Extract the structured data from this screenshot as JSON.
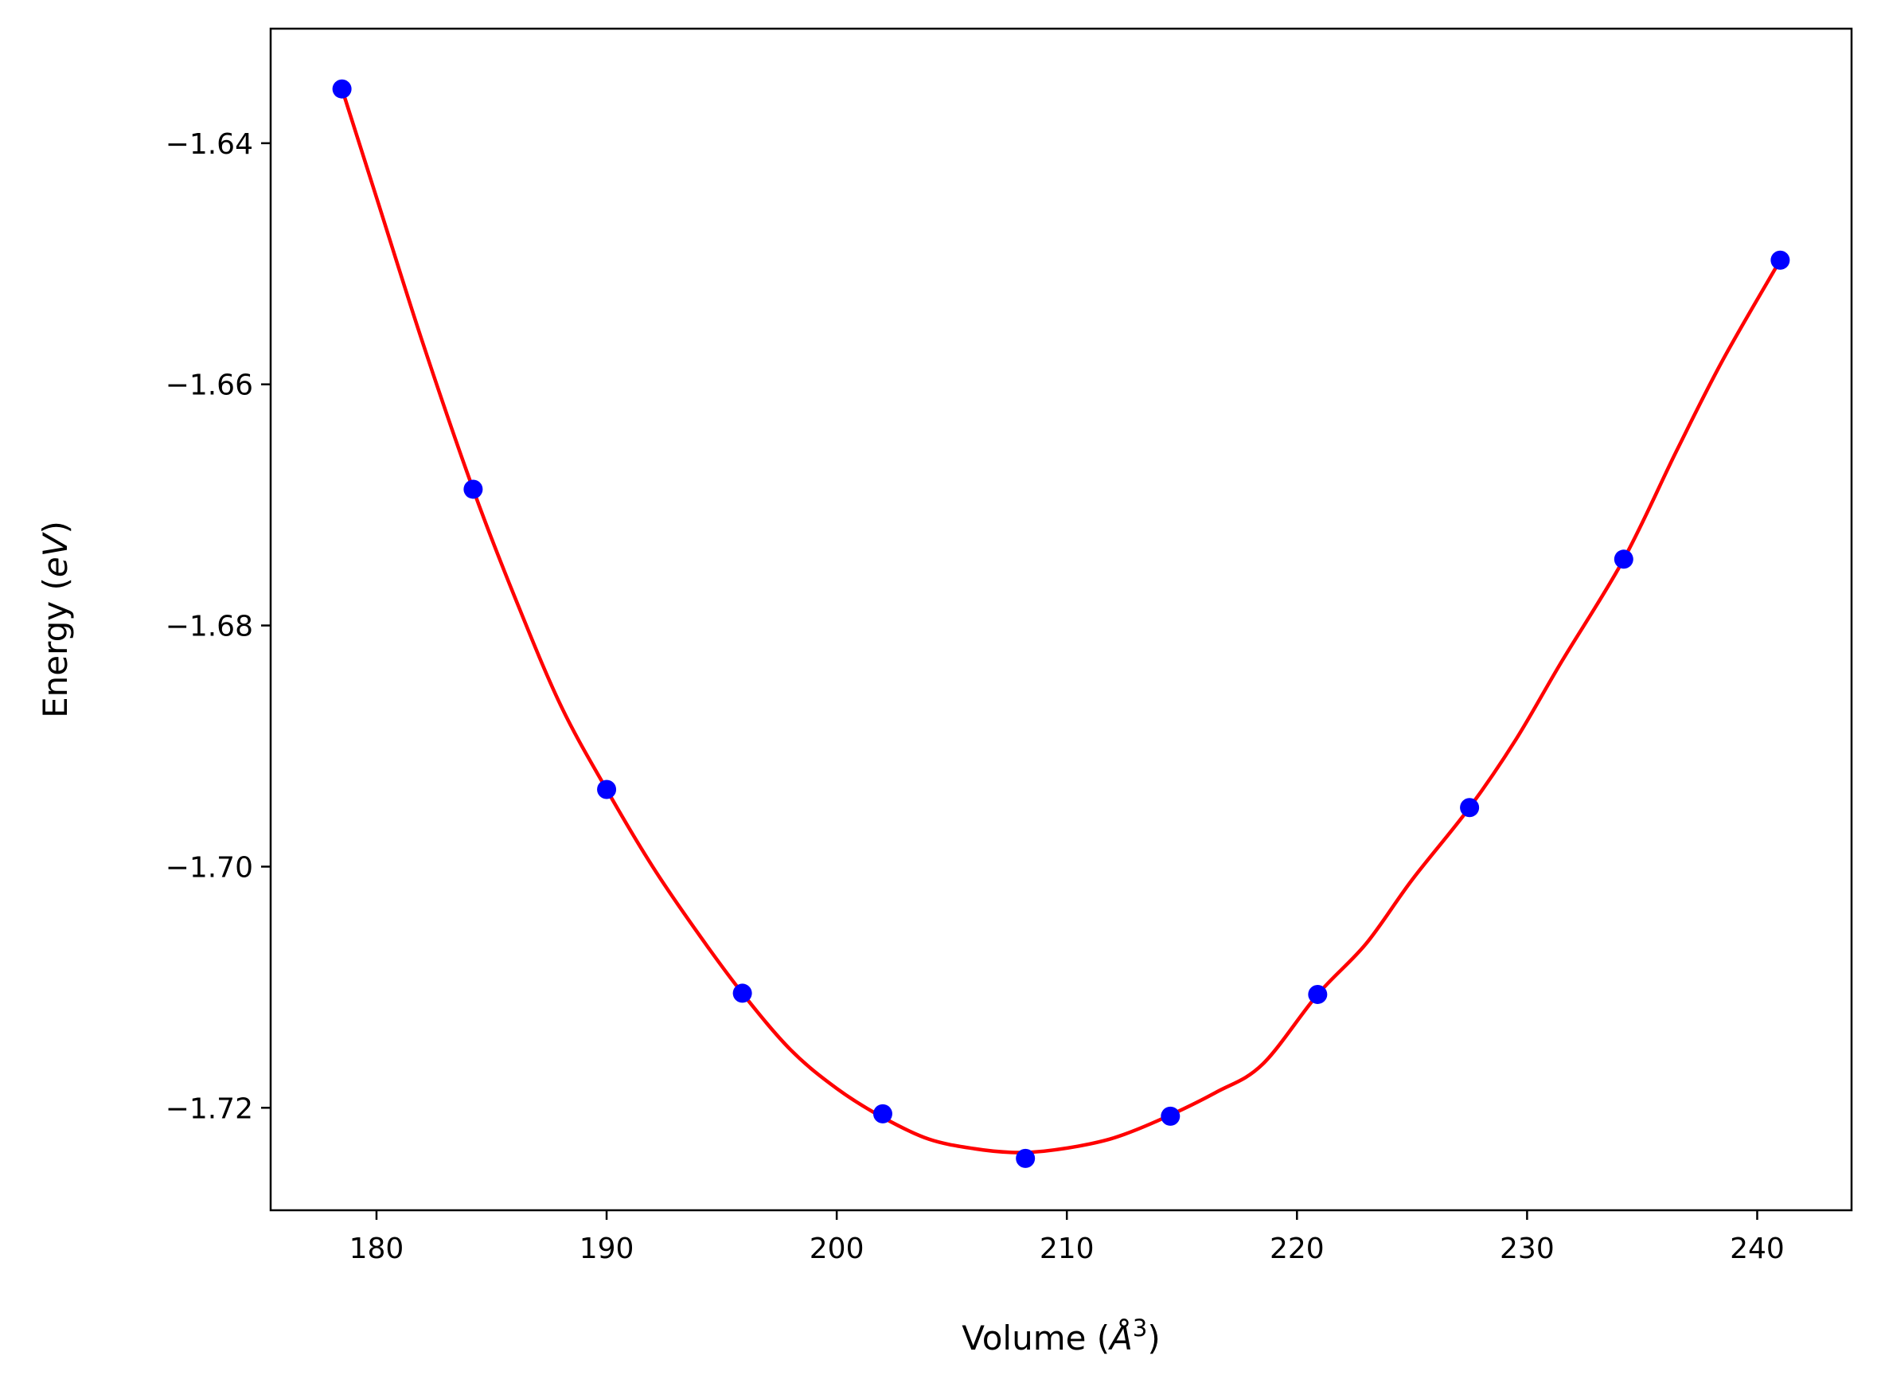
{
  "chart_data": {
    "type": "scatter",
    "title": "",
    "xlabel": {
      "prefix": "Volume (",
      "italic": "Å",
      "superscript": "3",
      "suffix": ")"
    },
    "ylabel": {
      "prefix": "Energy (",
      "italic": "eV",
      "suffix": ")"
    },
    "xlim": [
      175.4,
      244.1
    ],
    "ylim": [
      -1.7285,
      -1.6305
    ],
    "xticks": [
      180,
      190,
      200,
      210,
      220,
      230,
      240
    ],
    "xtick_labels": [
      "180",
      "190",
      "200",
      "210",
      "220",
      "230",
      "240"
    ],
    "yticks": [
      -1.64,
      -1.66,
      -1.68,
      -1.7,
      -1.72
    ],
    "ytick_labels": [
      "−1.64",
      "−1.66",
      "−1.68",
      "−1.70",
      "−1.72"
    ],
    "grid": false,
    "series": [
      {
        "kind": "points",
        "color": "#0000ff",
        "x": [
          178.5,
          184.2,
          190.0,
          195.9,
          202.0,
          208.2,
          214.5,
          220.9,
          227.5,
          234.2,
          241.0
        ],
        "y": [
          -1.6355,
          -1.6687,
          -1.6936,
          -1.7105,
          -1.7205,
          -1.7242,
          -1.7207,
          -1.7106,
          -1.6951,
          -1.6745,
          -1.6497
        ]
      },
      {
        "kind": "fit-curve",
        "color": "#ff0000",
        "x": [
          178.5,
          180.0,
          182.0,
          184.2,
          186.0,
          188.0,
          190.0,
          192.0,
          194.0,
          195.9,
          198.0,
          200.0,
          202.0,
          204.0,
          206.0,
          207.6,
          209.0,
          211.0,
          212.5,
          214.5,
          216.5,
          218.5,
          220.9,
          223.0,
          225.0,
          227.5,
          229.5,
          231.5,
          234.2,
          236.5,
          238.5,
          241.0
        ],
        "y": [
          -1.6355,
          -1.6445,
          -1.6565,
          -1.6687,
          -1.6776,
          -1.6866,
          -1.6936,
          -1.7,
          -1.7056,
          -1.7105,
          -1.7152,
          -1.7184,
          -1.7208,
          -1.7226,
          -1.7234,
          -1.7237,
          -1.7236,
          -1.723,
          -1.7222,
          -1.7206,
          -1.7187,
          -1.7164,
          -1.7106,
          -1.7064,
          -1.7011,
          -1.6951,
          -1.6895,
          -1.683,
          -1.6745,
          -1.6655,
          -1.658,
          -1.6497
        ]
      }
    ]
  }
}
